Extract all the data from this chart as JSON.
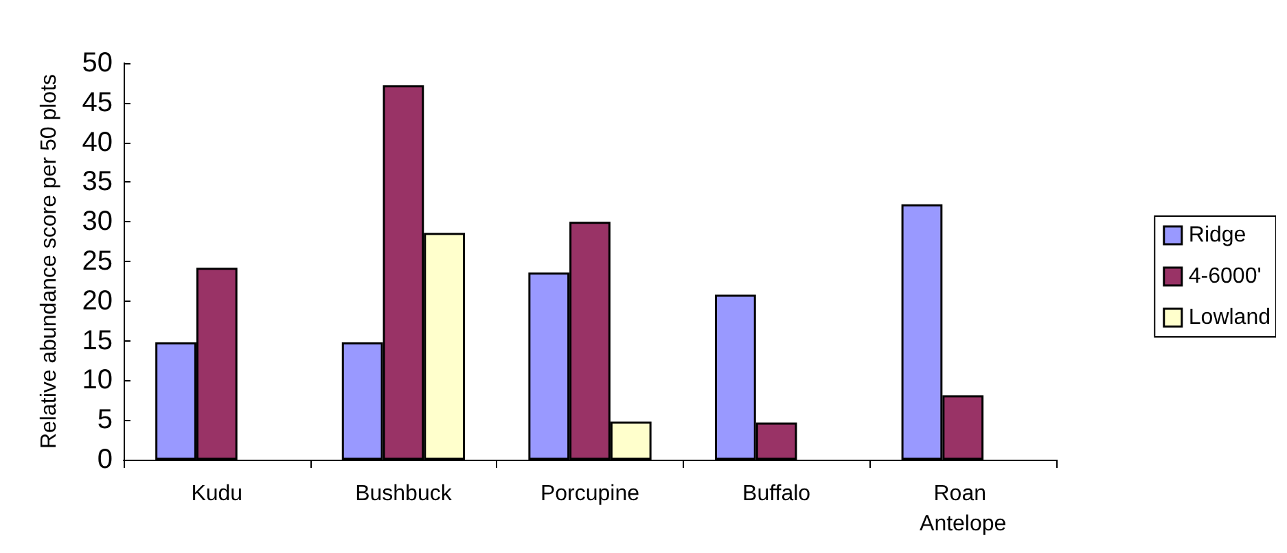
{
  "chart_data": {
    "type": "bar",
    "ylabel": "Relative abundance score per 50 plots",
    "categories": [
      "Kudu",
      "Bushbuck",
      "Porcupine",
      "Buffalo",
      "Roan Antelope"
    ],
    "series": [
      {
        "name": "Ridge",
        "color": "#9999ff",
        "values": [
          14.8,
          14.8,
          23.6,
          20.8,
          32.2
        ]
      },
      {
        "name": "4-6000'",
        "color": "#993366",
        "values": [
          24.2,
          47.2,
          30,
          4.7,
          8.1
        ]
      },
      {
        "name": "Lowland",
        "color": "#ffffcc",
        "values": [
          null,
          28.6,
          4.8,
          null,
          null
        ]
      }
    ],
    "ylim": [
      0,
      50
    ],
    "yticks": [
      0,
      5,
      10,
      15,
      20,
      25,
      30,
      35,
      40,
      45,
      50
    ],
    "grid": false,
    "legend": "right"
  }
}
